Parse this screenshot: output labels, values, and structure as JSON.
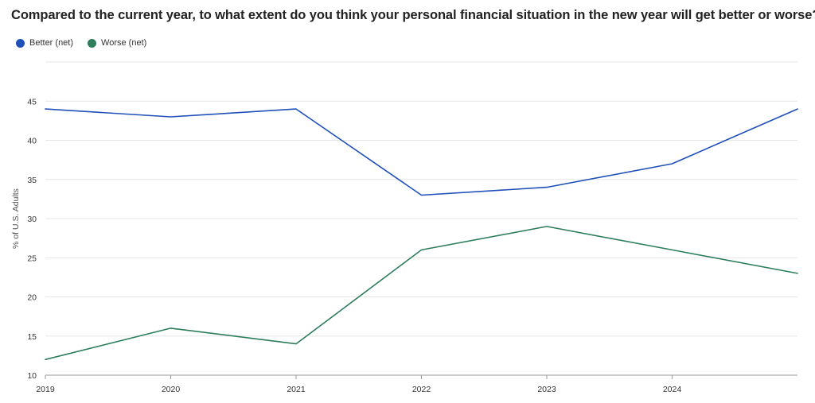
{
  "chart_data": {
    "type": "line",
    "title": "Compared to the current year, to what extent do you think your personal financial situation in the new year will get better or worse?",
    "xlabel": "",
    "ylabel": "% of U.S. Adults",
    "x": [
      2019,
      2020,
      2021,
      2022,
      2023,
      2024,
      2025
    ],
    "x_ticks": [
      "2019",
      "2020",
      "2021",
      "2022",
      "2023",
      "2024"
    ],
    "y_ticks": [
      "10",
      "15",
      "20",
      "25",
      "30",
      "35",
      "40",
      "45"
    ],
    "ylim": [
      10,
      50
    ],
    "grid": true,
    "legend_position": "top-left",
    "series": [
      {
        "name": "Better (net)",
        "color": "#1f4fb8",
        "values": [
          44,
          43,
          44,
          33,
          34,
          37,
          44
        ]
      },
      {
        "name": "Worse (net)",
        "color": "#2e7d5b",
        "values": [
          12,
          16,
          14,
          26,
          29,
          26,
          23
        ]
      }
    ]
  }
}
